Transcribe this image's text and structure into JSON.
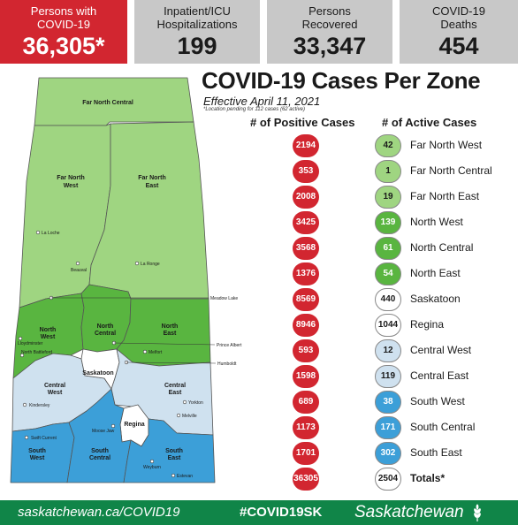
{
  "stats": {
    "cases": {
      "label_line1": "Persons with",
      "label_line2": "COVID-19",
      "value": "36,305*"
    },
    "hosp": {
      "label_line1": "Inpatient/ICU",
      "label_line2": "Hospitalizations",
      "value": "199"
    },
    "recov": {
      "label_line1": "Persons",
      "label_line2": "Recovered",
      "value": "33,347"
    },
    "deaths": {
      "label_line1": "COVID-19",
      "label_line2": "Deaths",
      "value": "454"
    }
  },
  "title": "COVID-19 Cases Per Zone",
  "effective": "Effective April 11, 2021",
  "pending_note": "*Location pending for 112 cases (62 active)",
  "col_positive": "# of Positive Cases",
  "col_active": "# of Active Cases",
  "colors": {
    "red": "#d22630",
    "light_green": "#9fd581",
    "mid_green": "#59b540",
    "light_blue": "#cfe1ef",
    "blue": "#3c9fd8",
    "footer_green": "#108548"
  },
  "zones": [
    {
      "name": "Far North West",
      "positive": "2194",
      "active": "42",
      "fill": "fill-lg"
    },
    {
      "name": "Far North Central",
      "positive": "353",
      "active": "1",
      "fill": "fill-lg"
    },
    {
      "name": "Far North East",
      "positive": "2008",
      "active": "19",
      "fill": "fill-lg"
    },
    {
      "name": "North West",
      "positive": "3425",
      "active": "139",
      "fill": "fill-mg"
    },
    {
      "name": "North Central",
      "positive": "3568",
      "active": "61",
      "fill": "fill-mg"
    },
    {
      "name": "North East",
      "positive": "1376",
      "active": "54",
      "fill": "fill-mg"
    },
    {
      "name": "Saskatoon",
      "positive": "8569",
      "active": "440",
      "fill": "fill-wh"
    },
    {
      "name": "Regina",
      "positive": "8946",
      "active": "1044",
      "fill": "fill-wh"
    },
    {
      "name": "Central West",
      "positive": "593",
      "active": "12",
      "fill": "fill-lb"
    },
    {
      "name": "Central East",
      "positive": "1598",
      "active": "119",
      "fill": "fill-lb"
    },
    {
      "name": "South West",
      "positive": "689",
      "active": "38",
      "fill": "fill-bl"
    },
    {
      "name": "South Central",
      "positive": "1173",
      "active": "171",
      "fill": "fill-bl"
    },
    {
      "name": "South East",
      "positive": "1701",
      "active": "302",
      "fill": "fill-bl"
    },
    {
      "name": "Totals*",
      "positive": "36305",
      "active": "2504",
      "fill": "fill-wh"
    }
  ],
  "map": {
    "zones": {
      "far_north_central": "Far North Central",
      "far_north_west_1": "Far North",
      "far_north_west_2": "West",
      "far_north_east_1": "Far North",
      "far_north_east_2": "East",
      "north_west_1": "North",
      "north_west_2": "West",
      "north_central_1": "North",
      "north_central_2": "Central",
      "north_east_1": "North",
      "north_east_2": "East",
      "saskatoon": "Saskatoon",
      "regina": "Regina",
      "central_west_1": "Central",
      "central_west_2": "West",
      "central_east_1": "Central",
      "central_east_2": "East",
      "south_west_1": "South",
      "south_west_2": "West",
      "south_central_1": "South",
      "south_central_2": "Central",
      "south_east_1": "South",
      "south_east_2": "East"
    },
    "towns": {
      "la_loche": "La Loche",
      "beauval": "Beauval",
      "la_ronge": "La Ronge",
      "meadow_lake": "Meadow Lake",
      "lloydminster": "Lloydminster",
      "north_battleford": "North Battleford",
      "prince_albert": "Prince Albert",
      "melfort": "Melfort",
      "humboldt": "Humboldt",
      "kindersley": "Kindersley",
      "yorkton": "Yorkton",
      "melville": "Melville",
      "swift_current": "Swift Current",
      "moose_jaw": "Moose Jaw",
      "weyburn": "Weyburn",
      "estevan": "Estevan"
    }
  },
  "footer": {
    "url": "saskatchewan.ca/COVID19",
    "hashtag": "#COVID19SK",
    "brand": "Saskatchewan"
  }
}
